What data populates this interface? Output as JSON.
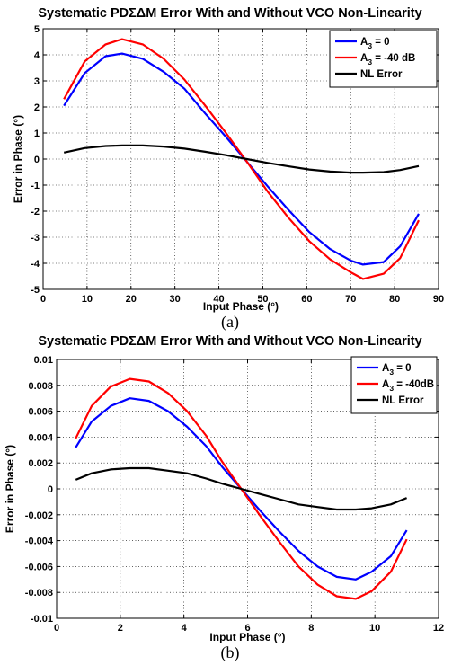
{
  "chart_data": [
    {
      "type": "line",
      "title": "Systematic PDΣΔM Error With and Without VCO Non-Linearity",
      "xlabel": "Input Phase (°)",
      "ylabel": "Error in Phase (°)",
      "xlim": [
        0,
        90
      ],
      "ylim": [
        -5,
        5
      ],
      "xticks": [
        0,
        10,
        20,
        30,
        40,
        50,
        60,
        70,
        80,
        90
      ],
      "yticks": [
        -5,
        -4,
        -3,
        -2,
        -1,
        0,
        1,
        2,
        3,
        4,
        5
      ],
      "xtick_labels": [
        "0",
        "10",
        "20",
        "30",
        "40",
        "50",
        "60",
        "70",
        "80",
        "90"
      ],
      "ytick_labels": [
        "-5",
        "-4",
        "-3",
        "-2",
        "-1",
        "0",
        "1",
        "2",
        "3",
        "4",
        "5"
      ],
      "grid": true,
      "legend_position": "top-right",
      "caption": "(a)",
      "series": [
        {
          "name": "A₃ = 0",
          "label_main": "A",
          "label_sub": "3",
          "label_rest": " = 0",
          "color": "#0000ff",
          "x": [
            4.74,
            9.47,
            14.21,
            17.95,
            22.68,
            27.42,
            32.16,
            36.89,
            41.63,
            46.37,
            51.11,
            55.84,
            60.58,
            65.32,
            70.05,
            72.79,
            77.53,
            81.26,
            85.5
          ],
          "y": [
            2.05,
            3.3,
            3.95,
            4.05,
            3.85,
            3.35,
            2.7,
            1.75,
            0.85,
            -0.1,
            -1.05,
            -1.95,
            -2.8,
            -3.45,
            -3.9,
            -4.05,
            -3.95,
            -3.35,
            -2.1
          ]
        },
        {
          "name": "A₃ = -40 dB",
          "label_main": "A",
          "label_sub": "3",
          "label_rest": " = -40 dB",
          "color": "#ff0000",
          "x": [
            4.74,
            9.47,
            14.21,
            17.95,
            22.68,
            27.42,
            32.16,
            36.89,
            41.63,
            46.37,
            51.11,
            55.84,
            60.58,
            65.32,
            70.05,
            72.79,
            77.53,
            81.26,
            85.5
          ],
          "y": [
            2.3,
            3.75,
            4.4,
            4.6,
            4.4,
            3.85,
            3.05,
            2.05,
            1.0,
            -0.1,
            -1.25,
            -2.25,
            -3.15,
            -3.85,
            -4.35,
            -4.6,
            -4.4,
            -3.8,
            -2.35
          ]
        },
        {
          "name": "NL Error",
          "label_main": "NL Error",
          "label_sub": "",
          "label_rest": "",
          "color": "#000000",
          "x": [
            4.74,
            9.47,
            14.21,
            17.95,
            22.68,
            27.42,
            32.16,
            36.89,
            41.63,
            46.37,
            51.11,
            55.84,
            60.58,
            65.32,
            70.05,
            72.79,
            77.53,
            81.26,
            85.5
          ],
          "y": [
            0.25,
            0.42,
            0.5,
            0.52,
            0.52,
            0.48,
            0.4,
            0.28,
            0.15,
            0.0,
            -0.15,
            -0.28,
            -0.4,
            -0.48,
            -0.52,
            -0.52,
            -0.5,
            -0.42,
            -0.27
          ]
        }
      ]
    },
    {
      "type": "line",
      "title": "Systematic PDΣΔM Error With and Without VCO Non-Linearity",
      "xlabel": "Input Phase (°)",
      "ylabel": "Error in Phase (°)",
      "xlim": [
        0,
        12
      ],
      "ylim": [
        -0.01,
        0.01
      ],
      "xticks": [
        0,
        2,
        4,
        6,
        8,
        10,
        12
      ],
      "yticks": [
        -0.01,
        -0.008,
        -0.006,
        -0.004,
        -0.002,
        0,
        0.002,
        0.004,
        0.006,
        0.008,
        0.01
      ],
      "xtick_labels": [
        "0",
        "2",
        "4",
        "6",
        "8",
        "10",
        "12"
      ],
      "ytick_labels": [
        "-0.01",
        "-0.008",
        "-0.006",
        "-0.004",
        "-0.002",
        "0",
        "0.002",
        "0.004",
        "0.006",
        "0.008",
        "0.01"
      ],
      "grid": true,
      "legend_position": "top-right",
      "caption": "(b)",
      "series": [
        {
          "name": "A₃ = 0",
          "label_main": "A",
          "label_sub": "3",
          "label_rest": " = 0",
          "color": "#0000ff",
          "x": [
            0.6,
            1.1,
            1.7,
            2.3,
            2.9,
            3.5,
            4.1,
            4.7,
            5.2,
            5.8,
            6.4,
            7.0,
            7.6,
            8.2,
            8.8,
            9.4,
            9.9,
            10.5,
            11.0
          ],
          "y": [
            0.0032,
            0.0052,
            0.0064,
            0.007,
            0.0068,
            0.006,
            0.0048,
            0.0033,
            0.0017,
            0.0,
            -0.0017,
            -0.0033,
            -0.0048,
            -0.006,
            -0.0068,
            -0.007,
            -0.0064,
            -0.0052,
            -0.0032
          ]
        },
        {
          "name": "A₃ = -40dB",
          "label_main": "A",
          "label_sub": "3",
          "label_rest": " = -40dB",
          "color": "#ff0000",
          "x": [
            0.6,
            1.1,
            1.7,
            2.3,
            2.9,
            3.5,
            4.1,
            4.7,
            5.2,
            5.8,
            6.4,
            7.0,
            7.6,
            8.2,
            8.8,
            9.4,
            9.9,
            10.5,
            11.0
          ],
          "y": [
            0.0039,
            0.0064,
            0.0079,
            0.0085,
            0.0083,
            0.0074,
            0.006,
            0.0041,
            0.0021,
            0.0,
            -0.0021,
            -0.0041,
            -0.006,
            -0.0074,
            -0.0083,
            -0.0085,
            -0.0079,
            -0.0064,
            -0.0039
          ]
        },
        {
          "name": "NL Error",
          "label_main": "NL Error",
          "label_sub": "",
          "label_rest": "",
          "color": "#000000",
          "x": [
            0.6,
            1.1,
            1.7,
            2.3,
            2.9,
            3.5,
            4.1,
            4.7,
            5.2,
            5.8,
            6.4,
            7.0,
            7.6,
            8.2,
            8.8,
            9.4,
            9.9,
            10.5,
            11.0
          ],
          "y": [
            0.0007,
            0.0012,
            0.0015,
            0.0016,
            0.0016,
            0.0014,
            0.0012,
            0.0008,
            0.0004,
            0.0,
            -0.0004,
            -0.0008,
            -0.0012,
            -0.0014,
            -0.0016,
            -0.0016,
            -0.0015,
            -0.0012,
            -0.0007
          ]
        }
      ]
    }
  ]
}
